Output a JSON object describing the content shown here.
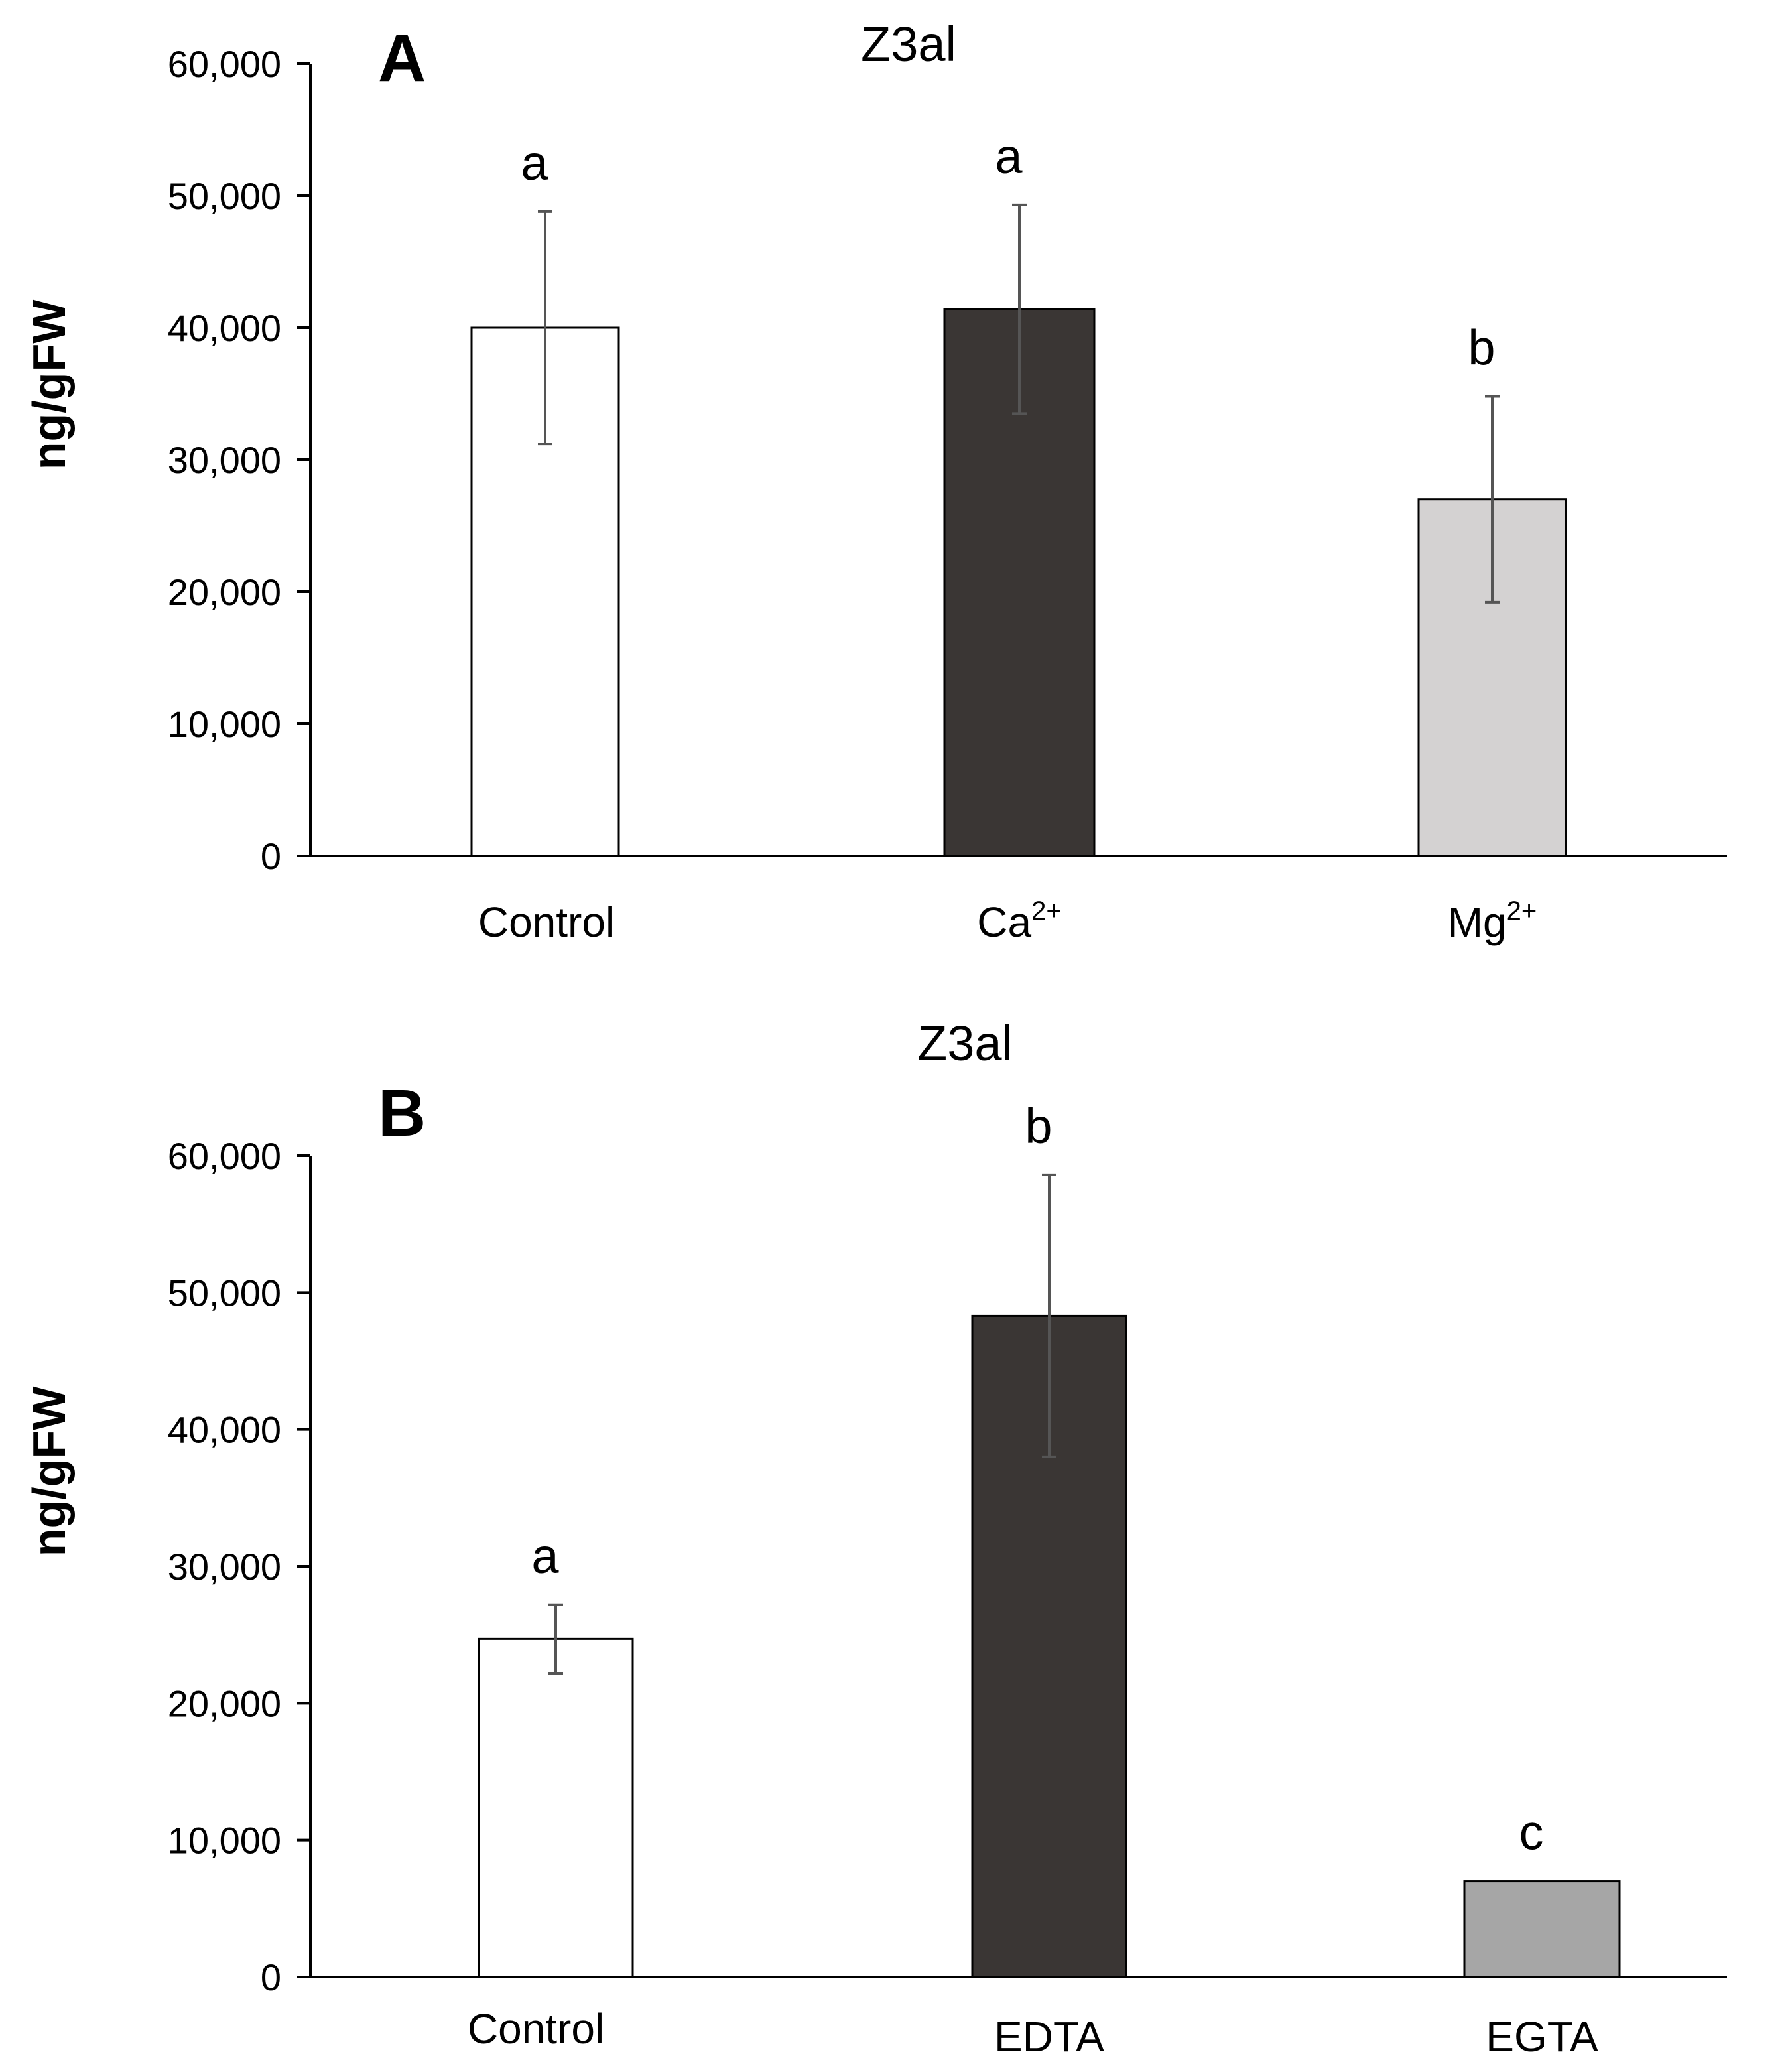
{
  "chart_data": [
    {
      "type": "bar",
      "panel_label": "A",
      "title": "Z3al",
      "ylabel": "ng/gFW",
      "xlabel": "",
      "ylim": [
        0,
        60000
      ],
      "yticks": [
        "0",
        "10,000",
        "20,000",
        "30,000",
        "40,000",
        "50,000",
        "60,000"
      ],
      "categories": [
        {
          "base": "Control",
          "sup": ""
        },
        {
          "base": "Ca",
          "sup": "2+"
        },
        {
          "base": "Mg",
          "sup": "2+"
        }
      ],
      "values": [
        40000,
        41400,
        27000
      ],
      "errors": [
        8800,
        7900,
        7800
      ],
      "significance": [
        "a",
        "a",
        "b"
      ],
      "colors": [
        "#ffffff",
        "#3a3634",
        "#d4d2d2"
      ],
      "grid": false,
      "legend": "none"
    },
    {
      "type": "bar",
      "panel_label": "B",
      "title": "Z3al",
      "ylabel": "ng/gFW",
      "xlabel": "",
      "ylim": [
        0,
        60000
      ],
      "yticks": [
        "0",
        "10,000",
        "20,000",
        "30,000",
        "40,000",
        "50,000",
        "60,000"
      ],
      "categories": [
        {
          "base": "Control",
          "sup": ""
        },
        {
          "base": "EDTA",
          "sup": ""
        },
        {
          "base": "EGTA",
          "sup": ""
        }
      ],
      "values": [
        24700,
        48300,
        7000
      ],
      "errors": [
        2500,
        10300,
        0
      ],
      "significance": [
        "a",
        "b",
        "c"
      ],
      "colors": [
        "#ffffff",
        "#3a3634",
        "#a6a6a6"
      ],
      "grid": false,
      "legend": "none"
    }
  ]
}
